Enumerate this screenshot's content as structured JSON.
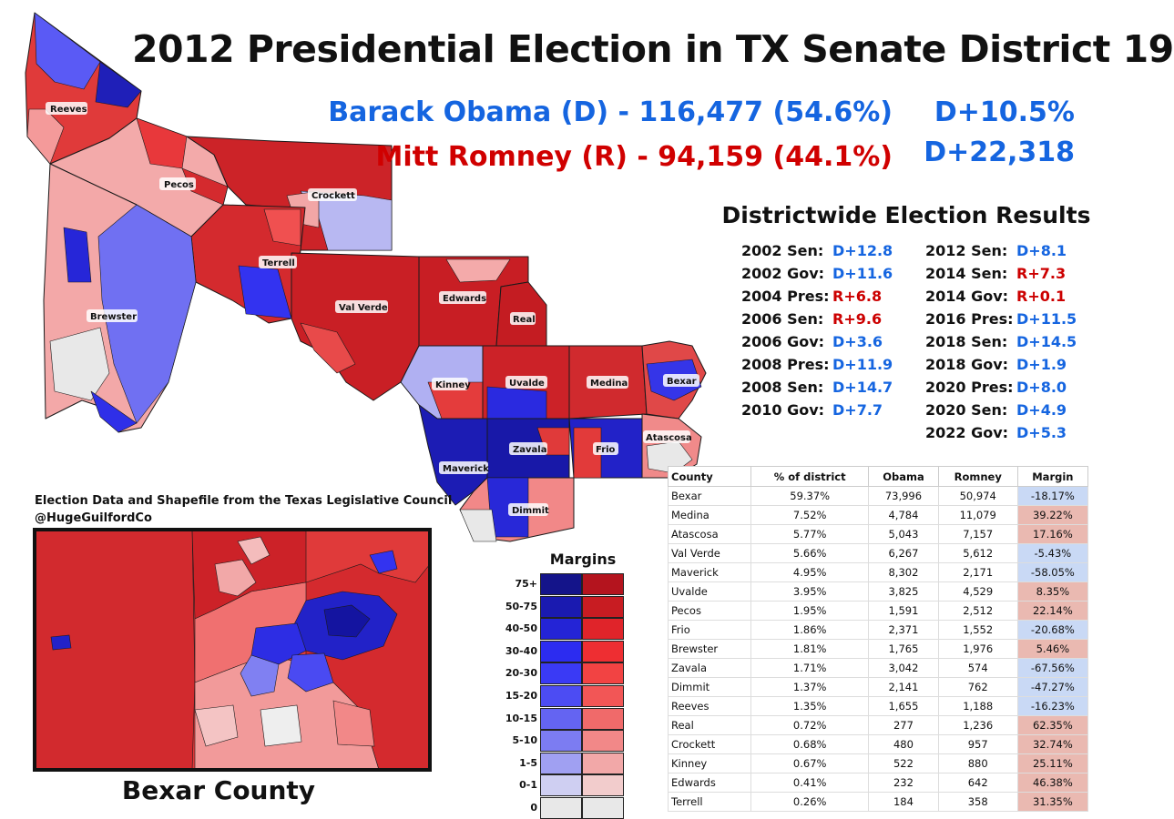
{
  "title": "2012 Presidential Election in TX Senate District 19",
  "candidates": {
    "obama": "Barack Obama (D) - 116,477 (54.6%)",
    "romney": "Mitt Romney (R) - 94,159 (44.1%)",
    "margin_pct": "D+10.5%",
    "margin_votes": "D+22,318"
  },
  "districtwide": {
    "title": "Districtwide Election Results",
    "left": [
      {
        "label": "2002 Sen:",
        "value": "D+12.8",
        "party": "dem"
      },
      {
        "label": "2002 Gov:",
        "value": "D+11.6",
        "party": "dem"
      },
      {
        "label": "2004 Pres:",
        "value": "R+6.8",
        "party": "rep"
      },
      {
        "label": "2006 Sen:",
        "value": "R+9.6",
        "party": "rep"
      },
      {
        "label": "2006 Gov:",
        "value": "D+3.6",
        "party": "dem"
      },
      {
        "label": "2008 Pres:",
        "value": "D+11.9",
        "party": "dem"
      },
      {
        "label": "2008 Sen:",
        "value": "D+14.7",
        "party": "dem"
      },
      {
        "label": "2010 Gov:",
        "value": "D+7.7",
        "party": "dem"
      }
    ],
    "right": [
      {
        "label": "2012 Sen:",
        "value": "D+8.1",
        "party": "dem"
      },
      {
        "label": "2014 Sen:",
        "value": "R+7.3",
        "party": "rep"
      },
      {
        "label": "2014 Gov:",
        "value": "R+0.1",
        "party": "rep"
      },
      {
        "label": "2016 Pres:",
        "value": "D+11.5",
        "party": "dem"
      },
      {
        "label": "2018 Sen:",
        "value": "D+14.5",
        "party": "dem"
      },
      {
        "label": "2018 Gov:",
        "value": "D+1.9",
        "party": "dem"
      },
      {
        "label": "2020 Pres:",
        "value": "D+8.0",
        "party": "dem"
      },
      {
        "label": "2020 Sen:",
        "value": "D+4.9",
        "party": "dem"
      },
      {
        "label": "2022 Gov:",
        "value": "D+5.3",
        "party": "dem"
      }
    ]
  },
  "credits": {
    "line1": "Election Data and Shapefile from the Texas Legislative Council",
    "line2": "@HugeGuilfordCo"
  },
  "inset_caption": "Bexar County",
  "county_labels": [
    "Reeves",
    "Pecos",
    "Crockett",
    "Terrell",
    "Brewster",
    "Val Verde",
    "Edwards",
    "Real",
    "Kinney",
    "Uvalde",
    "Medina",
    "Bexar",
    "Maverick",
    "Zavala",
    "Frio",
    "Atascosa",
    "Dimmit"
  ],
  "legend": {
    "title": "Margins",
    "rows": [
      {
        "label": "75+",
        "blue": "#14148a",
        "red": "#b4141e"
      },
      {
        "label": "50-75",
        "blue": "#1a1ab0",
        "red": "#c81c22"
      },
      {
        "label": "40-50",
        "blue": "#2424d6",
        "red": "#e0242a"
      },
      {
        "label": "30-40",
        "blue": "#2c2cf0",
        "red": "#ee2e32"
      },
      {
        "label": "20-30",
        "blue": "#3a3af5",
        "red": "#f24343"
      },
      {
        "label": "15-20",
        "blue": "#4c4cf3",
        "red": "#f25656"
      },
      {
        "label": "10-15",
        "blue": "#6464f2",
        "red": "#f06a6a"
      },
      {
        "label": "5-10",
        "blue": "#7c7cf2",
        "red": "#f28888"
      },
      {
        "label": "1-5",
        "blue": "#a0a0f2",
        "red": "#f2a8a8"
      },
      {
        "label": "0-1",
        "blue": "#cfcff2",
        "red": "#f2cccc"
      },
      {
        "label": "0",
        "blue": "#e8e8e8",
        "red": "#e8e8e8"
      }
    ]
  },
  "table": {
    "headers": [
      "County",
      "% of district",
      "Obama",
      "Romney",
      "Margin"
    ],
    "rows": [
      [
        "Bexar",
        "59.37%",
        "73,996",
        "50,974",
        "-18.17%"
      ],
      [
        "Medina",
        "7.52%",
        "4,784",
        "11,079",
        "39.22%"
      ],
      [
        "Atascosa",
        "5.77%",
        "5,043",
        "7,157",
        "17.16%"
      ],
      [
        "Val Verde",
        "5.66%",
        "6,267",
        "5,612",
        "-5.43%"
      ],
      [
        "Maverick",
        "4.95%",
        "8,302",
        "2,171",
        "-58.05%"
      ],
      [
        "Uvalde",
        "3.95%",
        "3,825",
        "4,529",
        "8.35%"
      ],
      [
        "Pecos",
        "1.95%",
        "1,591",
        "2,512",
        "22.14%"
      ],
      [
        "Frio",
        "1.86%",
        "2,371",
        "1,552",
        "-20.68%"
      ],
      [
        "Brewster",
        "1.81%",
        "1,765",
        "1,976",
        "5.46%"
      ],
      [
        "Zavala",
        "1.71%",
        "3,042",
        "574",
        "-67.56%"
      ],
      [
        "Dimmit",
        "1.37%",
        "2,141",
        "762",
        "-47.27%"
      ],
      [
        "Reeves",
        "1.35%",
        "1,655",
        "1,188",
        "-16.23%"
      ],
      [
        "Real",
        "0.72%",
        "277",
        "1,236",
        "62.35%"
      ],
      [
        "Crockett",
        "0.68%",
        "480",
        "957",
        "32.74%"
      ],
      [
        "Kinney",
        "0.67%",
        "522",
        "880",
        "25.11%"
      ],
      [
        "Edwards",
        "0.41%",
        "232",
        "642",
        "46.38%"
      ],
      [
        "Terrell",
        "0.26%",
        "184",
        "358",
        "31.35%"
      ]
    ]
  }
}
